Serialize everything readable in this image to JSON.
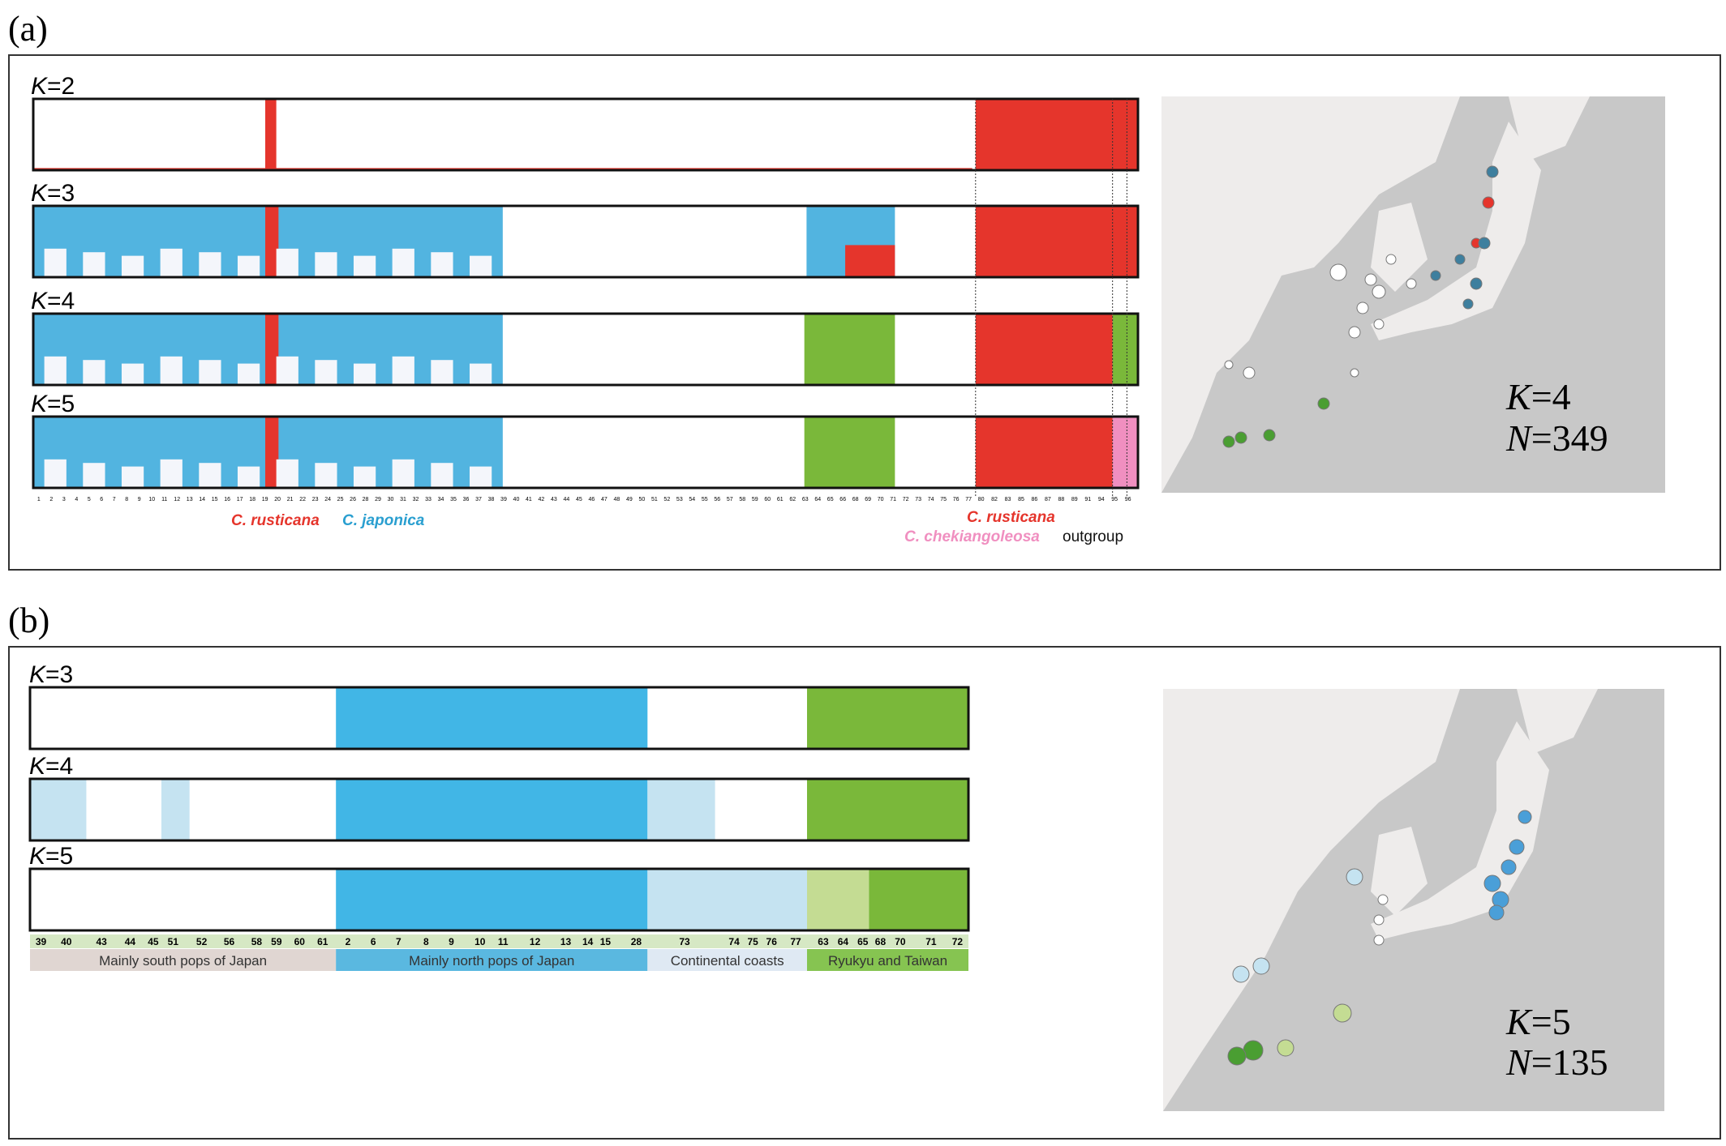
{
  "panel_a": {
    "label": "(a)",
    "var": "K",
    "rows": [
      "=2",
      "=3",
      "=4",
      "=5"
    ],
    "pop_labels": [
      "1",
      "2",
      "3",
      "4",
      "5",
      "6",
      "7",
      "8",
      "9",
      "10",
      "11",
      "12",
      "13",
      "14",
      "15",
      "16",
      "17",
      "18",
      "19",
      "20",
      "21",
      "22",
      "23",
      "24",
      "25",
      "26",
      "28",
      "29",
      "30",
      "31",
      "32",
      "33",
      "34",
      "35",
      "36",
      "37",
      "38",
      "39",
      "40",
      "41",
      "42",
      "43",
      "44",
      "45",
      "46",
      "47",
      "48",
      "49",
      "50",
      "51",
      "52",
      "53",
      "54",
      "55",
      "56",
      "57",
      "58",
      "59",
      "60",
      "61",
      "62",
      "63",
      "64",
      "65",
      "66",
      "68",
      "69",
      "70",
      "71",
      "72",
      "73",
      "74",
      "75",
      "76",
      "77",
      "80",
      "82",
      "83",
      "85",
      "86",
      "87",
      "88",
      "89",
      "91",
      "94",
      "95",
      "96"
    ],
    "species": {
      "rusticana": "C. rusticana",
      "japonica": "C. japonica",
      "rusticana2": "C. rusticana",
      "chekiangoleosa": "C. chekiangoleosa",
      "outgroup": "outgroup"
    },
    "map": {
      "var": "K",
      "k": "=4",
      "nvar": "N",
      "n": "=349"
    }
  },
  "panel_b": {
    "label": "(b)",
    "var": "K",
    "rows": [
      "=3",
      "=4",
      "=5"
    ],
    "pop_labels": [
      "39",
      "40",
      "43",
      "44",
      "45",
      "51",
      "52",
      "56",
      "58",
      "59",
      "60",
      "61",
      "2",
      "6",
      "7",
      "8",
      "9",
      "10",
      "11",
      "12",
      "13",
      "14",
      "15",
      "28",
      "73",
      "74",
      "75",
      "76",
      "77",
      "63",
      "64",
      "65",
      "68",
      "70",
      "71",
      "72"
    ],
    "groups": [
      "Mainly south pops of Japan",
      "Mainly north pops of Japan",
      "Continental coasts",
      "Ryukyu and Taiwan"
    ],
    "map": {
      "var": "K",
      "k": "=5",
      "nvar": "N",
      "n": "=135"
    }
  }
}
